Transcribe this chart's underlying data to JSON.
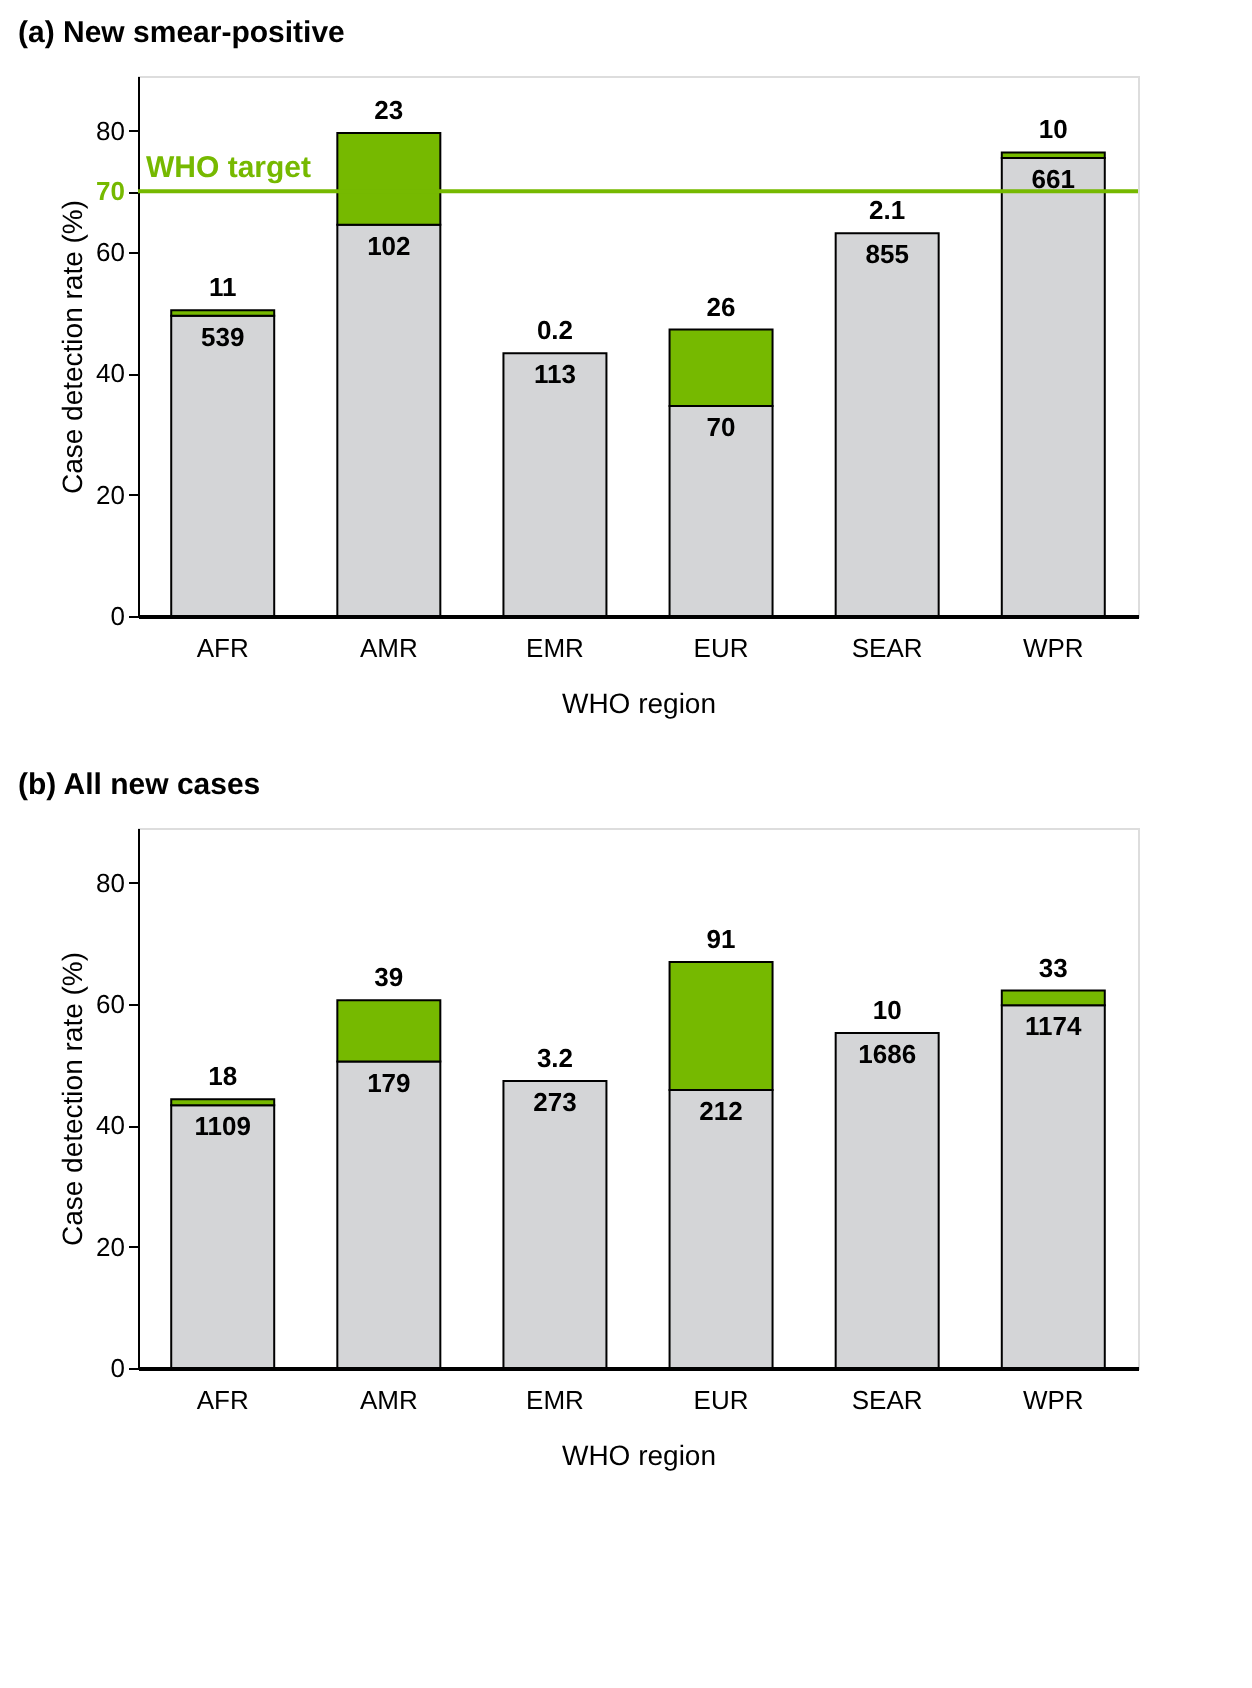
{
  "chart_data": [
    {
      "type": "bar",
      "title": "(a) New smear-positive",
      "xlabel": "WHO region",
      "ylabel": "Case detection rate (%)",
      "categories": [
        "AFR",
        "AMR",
        "EMR",
        "EUR",
        "SEAR",
        "WPR"
      ],
      "stacked": true,
      "series": [
        {
          "color": "#d4d5d7",
          "values": [
            49.5,
            64.5,
            43.3,
            34.6,
            63.1,
            75.5
          ]
        },
        {
          "color": "#76b900",
          "values": [
            0.9,
            15.1,
            null,
            12.6,
            null,
            0.9
          ]
        }
      ],
      "ylim": [
        0,
        89
      ],
      "yticks": [
        0,
        20,
        40,
        60,
        70,
        80
      ],
      "grid": false,
      "legend": false,
      "ref_lines": [
        {
          "axis": "y",
          "value": 70,
          "label": "WHO target",
          "color": "#76b900",
          "line_style": "solid"
        }
      ],
      "annotations": [
        {
          "text": "539",
          "x": "AFR",
          "y": 49.5
        },
        {
          "text": "102",
          "x": "AMR",
          "y": 64.5
        },
        {
          "text": "113",
          "x": "EMR",
          "y": 43.3
        },
        {
          "text": "70",
          "x": "EUR",
          "y": 34.6
        },
        {
          "text": "855",
          "x": "SEAR",
          "y": 63.1
        },
        {
          "text": "661",
          "x": "WPR",
          "y": 75.5
        },
        {
          "text": "11",
          "x": "AFR",
          "y": 50.4
        },
        {
          "text": "23",
          "x": "AMR",
          "y": 79.6
        },
        {
          "text": "0.2",
          "x": "EMR",
          "y": 43.3
        },
        {
          "text": "26",
          "x": "EUR",
          "y": 47.2
        },
        {
          "text": "2.1",
          "x": "SEAR",
          "y": 63.1
        },
        {
          "text": "10",
          "x": "WPR",
          "y": 76.4
        }
      ]
    },
    {
      "type": "bar",
      "title": "(b) All new cases",
      "xlabel": "WHO region",
      "ylabel": "Case detection rate (%)",
      "categories": [
        "AFR",
        "AMR",
        "EMR",
        "EUR",
        "SEAR",
        "WPR"
      ],
      "stacked": true,
      "series": [
        {
          "color": "#d4d5d7",
          "values": [
            43.3,
            50.5,
            47.3,
            45.8,
            55.2,
            59.8
          ]
        },
        {
          "color": "#76b900",
          "values": [
            1.0,
            10.1,
            null,
            21.1,
            null,
            2.4
          ]
        }
      ],
      "ylim": [
        0,
        89
      ],
      "yticks": [
        0,
        20,
        40,
        60,
        80
      ],
      "grid": false,
      "legend": false,
      "annotations": [
        {
          "text": "1109",
          "x": "AFR",
          "y": 43.3
        },
        {
          "text": "179",
          "x": "AMR",
          "y": 50.5
        },
        {
          "text": "273",
          "x": "EMR",
          "y": 47.3
        },
        {
          "text": "212",
          "x": "EUR",
          "y": 45.8
        },
        {
          "text": "1686",
          "x": "SEAR",
          "y": 55.2
        },
        {
          "text": "1174",
          "x": "WPR",
          "y": 59.8
        },
        {
          "text": "18",
          "x": "AFR",
          "y": 44.3
        },
        {
          "text": "39",
          "x": "AMR",
          "y": 60.6
        },
        {
          "text": "3.2",
          "x": "EMR",
          "y": 47.3
        },
        {
          "text": "91",
          "x": "EUR",
          "y": 66.9
        },
        {
          "text": "10",
          "x": "SEAR",
          "y": 55.2
        },
        {
          "text": "33",
          "x": "WPR",
          "y": 62.2
        }
      ]
    }
  ]
}
